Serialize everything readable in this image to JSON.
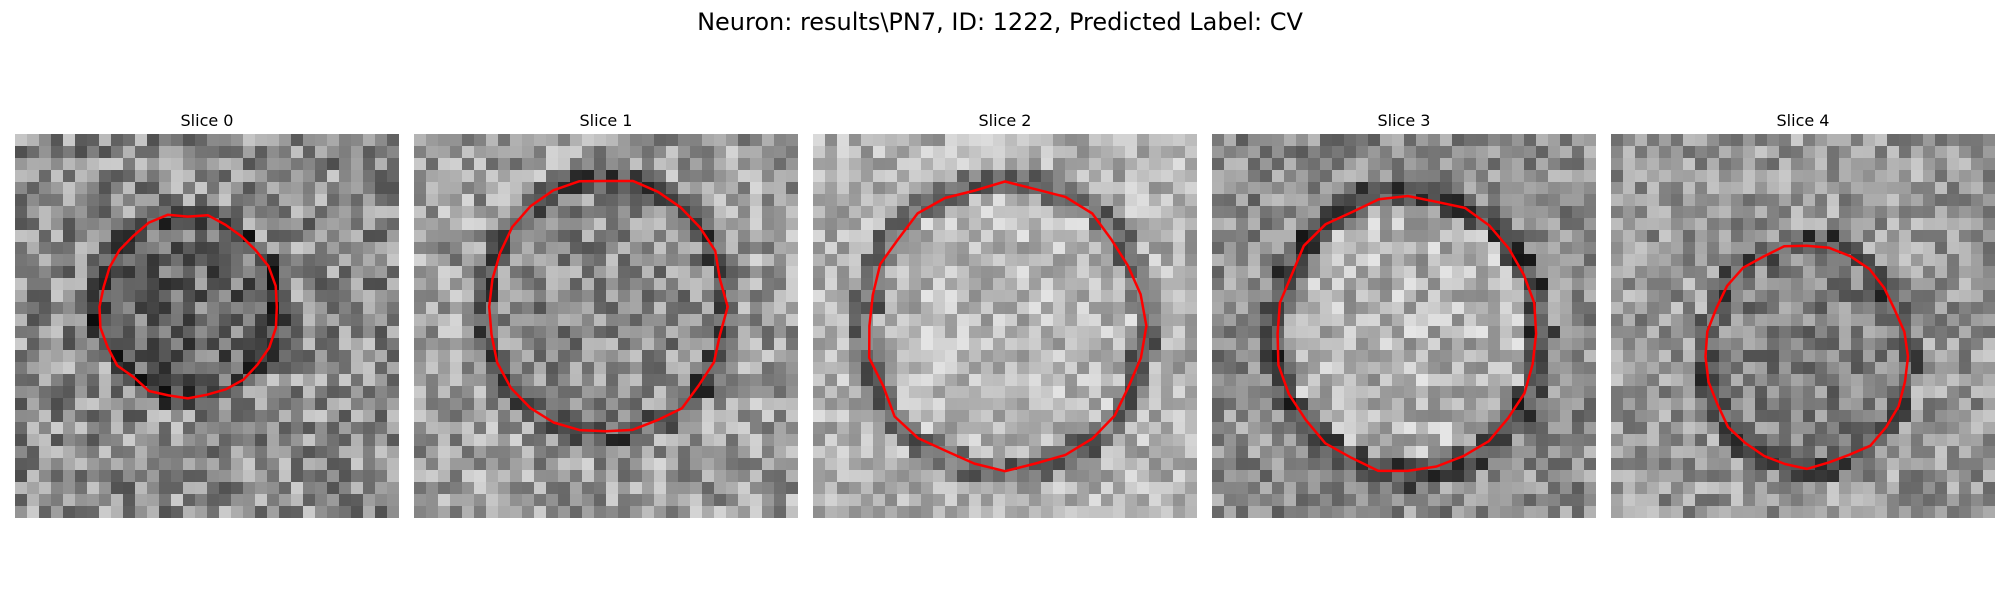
{
  "figure": {
    "title": "Neuron: results\\PN7, ID: 1222, Predicted Label: CV"
  },
  "panels": [
    {
      "label": "Slice 0",
      "bg_level": 0.55,
      "contrast": 0.5,
      "contour_color": "#ff0000",
      "region": {
        "center_frac": [
          0.45,
          0.45
        ],
        "radius_frac": [
          0.23,
          0.24
        ],
        "inner_level": 0.42
      }
    },
    {
      "label": "Slice 1",
      "bg_level": 0.62,
      "contrast": 0.45,
      "contour_color": "#ff0000",
      "region": {
        "center_frac": [
          0.5,
          0.45
        ],
        "radius_frac": [
          0.31,
          0.33
        ],
        "inner_level": 0.55
      }
    },
    {
      "label": "Slice 2",
      "bg_level": 0.7,
      "contrast": 0.35,
      "contour_color": "#ff0000",
      "region": {
        "center_frac": [
          0.5,
          0.5
        ],
        "radius_frac": [
          0.36,
          0.37
        ],
        "inner_level": 0.72
      }
    },
    {
      "label": "Slice 3",
      "bg_level": 0.55,
      "contrast": 0.4,
      "contour_color": "#ff0000",
      "region": {
        "center_frac": [
          0.51,
          0.52
        ],
        "radius_frac": [
          0.34,
          0.36
        ],
        "inner_level": 0.7
      }
    },
    {
      "label": "Slice 4",
      "bg_level": 0.6,
      "contrast": 0.4,
      "contour_color": "#ff0000",
      "region": {
        "center_frac": [
          0.51,
          0.58
        ],
        "radius_frac": [
          0.26,
          0.29
        ],
        "inner_level": 0.5
      }
    }
  ]
}
